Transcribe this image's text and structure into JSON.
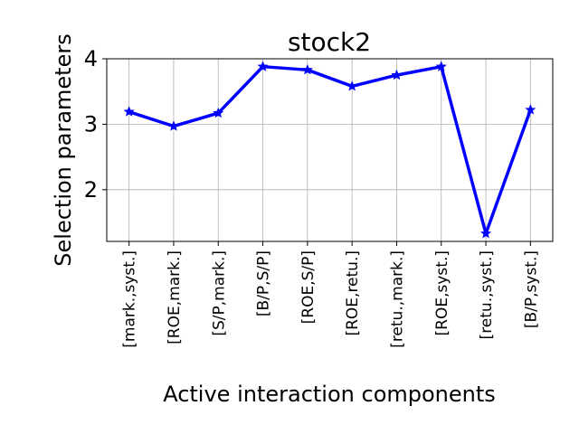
{
  "chart_data": {
    "type": "line",
    "title": "stock2",
    "xlabel": "Active interaction components",
    "ylabel": "Selection parameters",
    "categories": [
      "[mark.,syst.]",
      "[ROE,mark.]",
      "[S/P,mark.]",
      "[B/P,S/P]",
      "[ROE,S/P]",
      "[ROE,retu.]",
      "[retu.,mark.]",
      "[ROE,syst.]",
      "[retu.,syst.]",
      "[B/P,syst.]"
    ],
    "series": [
      {
        "name": "stock2",
        "values": [
          3.19,
          2.97,
          3.17,
          3.88,
          3.83,
          3.58,
          3.75,
          3.88,
          1.33,
          3.22
        ]
      }
    ],
    "ylim": [
      1.21,
      4.0
    ],
    "yticks": [
      2,
      3,
      4
    ],
    "ytick_labels": [
      "2",
      "3",
      "4"
    ],
    "grid": true,
    "line_color": "#0000ff",
    "marker": "star"
  }
}
